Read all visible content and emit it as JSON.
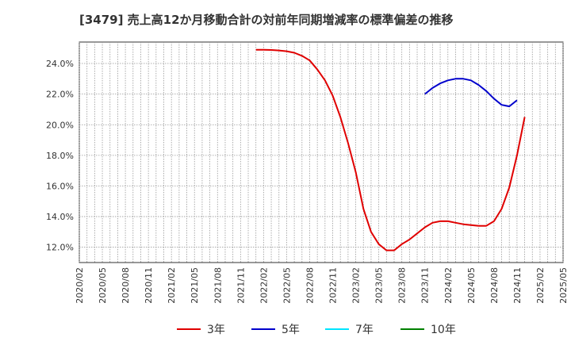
{
  "title": "[3479]  売上高12か月移動合計の対前年同期増減率の標準偏差の推移",
  "chart_data": {
    "type": "line",
    "title": "[3479]  売上高12か月移動合計の対前年同期増減率の標準偏差の推移",
    "xlabel": "",
    "ylabel": "",
    "x_ticks": [
      "2020/02",
      "2020/05",
      "2020/08",
      "2020/11",
      "2021/02",
      "2021/05",
      "2021/08",
      "2021/11",
      "2022/02",
      "2022/05",
      "2022/08",
      "2022/11",
      "2023/02",
      "2023/05",
      "2023/08",
      "2023/11",
      "2024/02",
      "2024/05",
      "2024/08",
      "2024/11",
      "2025/02",
      "2025/05"
    ],
    "y_ticks": [
      "12.0%",
      "14.0%",
      "16.0%",
      "18.0%",
      "20.0%",
      "22.0%",
      "24.0%"
    ],
    "y_tick_values": [
      12,
      14,
      16,
      18,
      20,
      22,
      24
    ],
    "ylim": [
      11.0,
      25.4
    ],
    "grid": true,
    "legend_position": "bottom",
    "series": [
      {
        "name": "3年",
        "color": "#e00000",
        "points": [
          [
            "2022/01",
            24.9
          ],
          [
            "2022/02",
            24.9
          ],
          [
            "2022/03",
            24.88
          ],
          [
            "2022/04",
            24.85
          ],
          [
            "2022/05",
            24.8
          ],
          [
            "2022/06",
            24.7
          ],
          [
            "2022/07",
            24.5
          ],
          [
            "2022/08",
            24.2
          ],
          [
            "2022/09",
            23.6
          ],
          [
            "2022/10",
            22.9
          ],
          [
            "2022/11",
            21.9
          ],
          [
            "2022/12",
            20.5
          ],
          [
            "2023/01",
            18.8
          ],
          [
            "2023/02",
            16.9
          ],
          [
            "2023/03",
            14.5
          ],
          [
            "2023/04",
            13.0
          ],
          [
            "2023/05",
            12.2
          ],
          [
            "2023/06",
            11.8
          ],
          [
            "2023/07",
            11.8
          ],
          [
            "2023/08",
            12.2
          ],
          [
            "2023/09",
            12.5
          ],
          [
            "2023/10",
            12.9
          ],
          [
            "2023/11",
            13.3
          ],
          [
            "2023/12",
            13.6
          ],
          [
            "2024/01",
            13.7
          ],
          [
            "2024/02",
            13.7
          ],
          [
            "2024/03",
            13.6
          ],
          [
            "2024/04",
            13.5
          ],
          [
            "2024/05",
            13.45
          ],
          [
            "2024/06",
            13.4
          ],
          [
            "2024/07",
            13.4
          ],
          [
            "2024/08",
            13.7
          ],
          [
            "2024/09",
            14.5
          ],
          [
            "2024/10",
            15.9
          ],
          [
            "2024/11",
            18.0
          ],
          [
            "2024/12",
            20.5
          ]
        ]
      },
      {
        "name": "5年",
        "color": "#0000cc",
        "points": [
          [
            "2023/11",
            22.0
          ],
          [
            "2023/12",
            22.4
          ],
          [
            "2024/01",
            22.7
          ],
          [
            "2024/02",
            22.9
          ],
          [
            "2024/03",
            23.0
          ],
          [
            "2024/04",
            23.0
          ],
          [
            "2024/05",
            22.9
          ],
          [
            "2024/06",
            22.6
          ],
          [
            "2024/07",
            22.2
          ],
          [
            "2024/08",
            21.7
          ],
          [
            "2024/09",
            21.3
          ],
          [
            "2024/10",
            21.2
          ],
          [
            "2024/11",
            21.6
          ]
        ]
      },
      {
        "name": "7年",
        "color": "#00e5ff",
        "points": []
      },
      {
        "name": "10年",
        "color": "#008000",
        "points": []
      }
    ]
  }
}
